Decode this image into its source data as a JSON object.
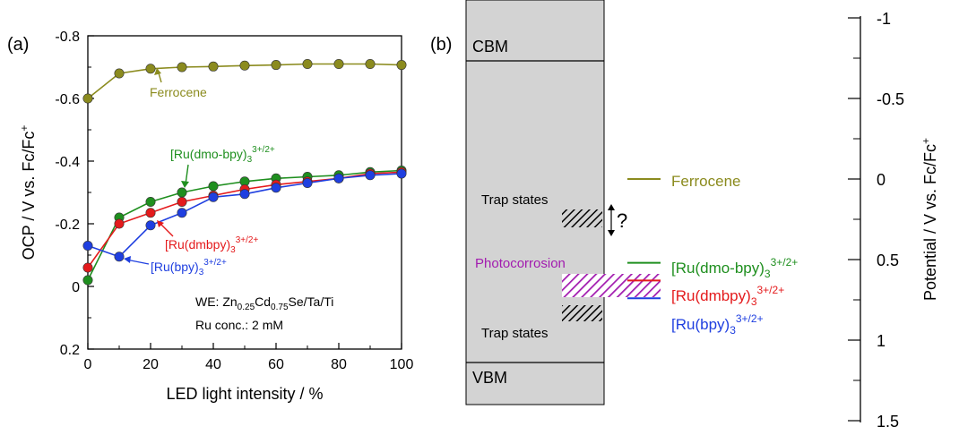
{
  "panel_a": {
    "panel_label": "(a)",
    "ylabel_main": "OCP / V vs. Fc/Fc",
    "ylabel_sup": "+",
    "xlabel": "LED light intensity / %",
    "x_ticks": [
      "0",
      "20",
      "40",
      "60",
      "80",
      "100"
    ],
    "y_ticks": [
      "-0.8",
      "-0.6",
      "-0.4",
      "-0.2",
      "0",
      "0.2"
    ],
    "we_prefix": "WE: Zn",
    "we_sub1": "0.25",
    "we_mid": "Cd",
    "we_sub2": "0.75",
    "we_suffix": "Se/Ta/Ti",
    "ru_conc": "Ru conc.: 2 mM",
    "labels": {
      "ferrocene": "Ferrocene",
      "dmo_main": "[Ru(dmo-bpy)",
      "dmb_main": "[Ru(dmbpy)",
      "bpy_main": "[Ru(bpy)",
      "sub3": "3",
      "sup_charge": "3+/2+"
    }
  },
  "panel_b": {
    "panel_label": "(b)",
    "cbm": "CBM",
    "vbm": "VBM",
    "trap_upper": "Trap states",
    "trap_lower": "Trap states",
    "question": "?",
    "photocorrosion": "Photocorrosion",
    "ylabel_main": "Potential / V vs. Fc/Fc",
    "ylabel_sup": "+",
    "y_ticks": [
      "-1",
      "-0.5",
      "0",
      "0.5",
      "1",
      "1.5"
    ],
    "legend": {
      "ferrocene": "Ferrocene",
      "dmo_main": "[Ru(dmo-bpy)",
      "dmb_main": "[Ru(dmbpy)",
      "bpy_main": "[Ru(bpy)",
      "sub3": "3",
      "sup_charge": "3+/2+"
    }
  },
  "colors": {
    "ferrocene": "#8b8b1e",
    "dmo": "#1f8f1f",
    "dmb": "#e41a1c",
    "bpy": "#1f3fe0",
    "photocorrosion": "#a21caf",
    "band_fill": "#d3d3d3"
  },
  "chart_data": [
    {
      "type": "line",
      "panel": "(a)",
      "xlabel": "LED light intensity / %",
      "ylabel": "OCP / V vs. Fc/Fc+",
      "xlim": [
        0,
        100
      ],
      "ylim": [
        0.2,
        -0.8
      ],
      "y_axis_inverted": true,
      "grid": false,
      "x": [
        0,
        10,
        20,
        30,
        40,
        50,
        60,
        70,
        80,
        90,
        100
      ],
      "series": [
        {
          "name": "Ferrocene",
          "color": "#8b8b1e",
          "values": [
            -0.6,
            -0.68,
            -0.695,
            -0.7,
            -0.702,
            -0.705,
            -0.707,
            -0.71,
            -0.71,
            -0.71,
            -0.707
          ]
        },
        {
          "name": "[Ru(dmo-bpy)3]3+/2+",
          "color": "#1f8f1f",
          "values": [
            -0.02,
            -0.22,
            -0.27,
            -0.3,
            -0.32,
            -0.335,
            -0.345,
            -0.35,
            -0.355,
            -0.365,
            -0.37
          ]
        },
        {
          "name": "[Ru(dmbpy)3]3+/2+",
          "color": "#e41a1c",
          "values": [
            -0.06,
            -0.2,
            -0.235,
            -0.27,
            -0.29,
            -0.31,
            -0.325,
            -0.335,
            -0.345,
            -0.36,
            -0.365
          ]
        },
        {
          "name": "[Ru(bpy)3]3+/2+",
          "color": "#1f3fe0",
          "values": [
            -0.13,
            -0.095,
            -0.195,
            -0.235,
            -0.285,
            -0.295,
            -0.315,
            -0.33,
            -0.345,
            -0.355,
            -0.36
          ]
        }
      ]
    },
    {
      "type": "diagram",
      "panel": "(b)",
      "ylabel": "Potential / V vs. Fc/Fc+",
      "ylim": [
        1.5,
        -1
      ],
      "y_axis_inverted": true,
      "cbm": -0.67,
      "vbm": 1.04,
      "levels": [
        {
          "name": "Ferrocene",
          "value": 0.0,
          "color": "#8b8b1e"
        },
        {
          "name": "[Ru(dmo-bpy)3]3+/2+",
          "value": 0.52,
          "color": "#1f8f1f"
        },
        {
          "name": "[Ru(dmbpy)3]3+/2+",
          "value": 0.63,
          "color": "#e41a1c"
        },
        {
          "name": "[Ru(bpy)3]3+/2+",
          "value": 0.74,
          "color": "#1f3fe0"
        }
      ],
      "trap_states_upper": [
        0.19,
        0.27
      ],
      "trap_states_lower": [
        0.71,
        0.79
      ],
      "photocorrosion_range": [
        0.53,
        0.65
      ]
    }
  ]
}
